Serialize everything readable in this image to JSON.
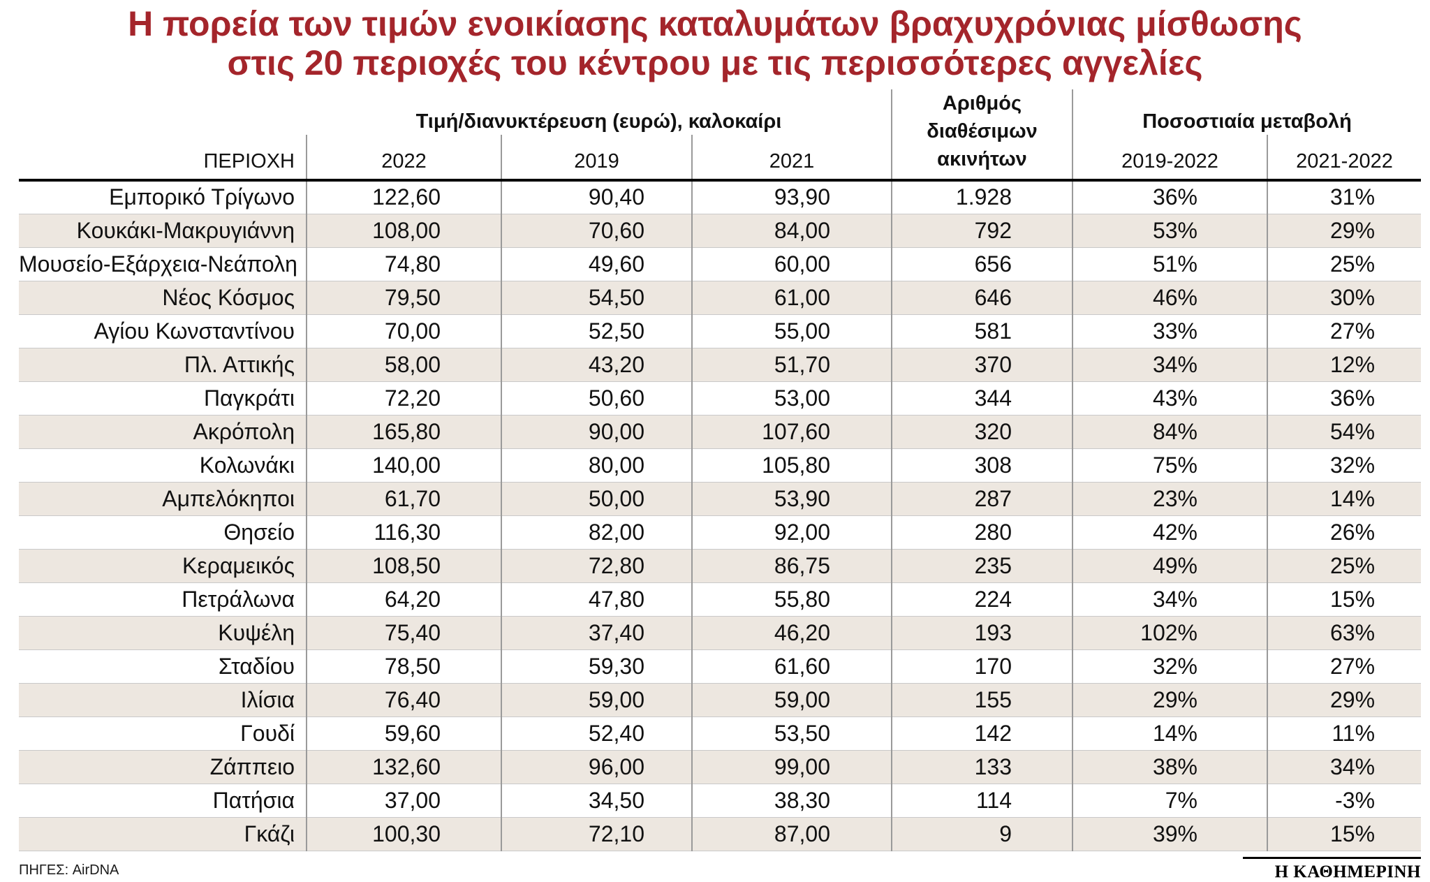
{
  "title": {
    "line1": "Η πορεία των τιμών ενοικίασης καταλυμάτων βραχυχρόνιας μίσθωσης",
    "line2": "στις 20 περιοχές του κέντρου με τις περισσότερες αγγελίες"
  },
  "header": {
    "price_group": "Τιμή/διανυκτέρευση (ευρώ), καλοκαίρι",
    "listings_group_line1": "Αριθμός διαθέσιμων",
    "listings_group_line2": "ακινήτων",
    "change_group": "Ποσοστιαία μεταβολή",
    "region_col": "ΠΕΡΙΟΧΗ",
    "year_cols": [
      "2022",
      "2019",
      "2021"
    ],
    "change_cols": [
      "2019-2022",
      "2021-2022"
    ]
  },
  "footer": {
    "sources": "ΠΗΓΕΣ: AirDNA",
    "brand": "Η ΚΑΘΗΜΕΡΙΝΗ"
  },
  "colors": {
    "title_red": "#A4252B",
    "row_alt_bg": "#EDE7E0"
  },
  "chart_data": {
    "type": "table",
    "title": "Η πορεία των τιμών ενοικίασης καταλυμάτων βραχυχρόνιας μίσθωσης στις 20 περιοχές του κέντρου με τις περισσότερες αγγελίες",
    "column_groups": [
      {
        "label": "Τιμή/διανυκτέρευση (ευρώ), καλοκαίρι",
        "spans": [
          "2022",
          "2019",
          "2021"
        ]
      },
      {
        "label": "Αριθμός διαθέσιμων ακινήτων",
        "spans": [
          "Αριθμός διαθέσιμων ακινήτων"
        ]
      },
      {
        "label": "Ποσοστιαία μεταβολή",
        "spans": [
          "2019-2022",
          "2021-2022"
        ]
      }
    ],
    "columns": [
      "ΠΕΡΙΟΧΗ",
      "2022",
      "2019",
      "2021",
      "Αριθμός διαθέσιμων ακινήτων",
      "2019-2022",
      "2021-2022"
    ],
    "rows": [
      [
        "Εμπορικό Τρίγωνο",
        "122,60",
        "90,40",
        "93,90",
        "1.928",
        "36%",
        "31%"
      ],
      [
        "Κουκάκι-Μακρυγιάννη",
        "108,00",
        "70,60",
        "84,00",
        "792",
        "53%",
        "29%"
      ],
      [
        "Μουσείο-Εξάρχεια-Νεάπολη",
        "74,80",
        "49,60",
        "60,00",
        "656",
        "51%",
        "25%"
      ],
      [
        "Νέος Κόσμος",
        "79,50",
        "54,50",
        "61,00",
        "646",
        "46%",
        "30%"
      ],
      [
        "Αγίου Κωνσταντίνου",
        "70,00",
        "52,50",
        "55,00",
        "581",
        "33%",
        "27%"
      ],
      [
        "Πλ. Αττικής",
        "58,00",
        "43,20",
        "51,70",
        "370",
        "34%",
        "12%"
      ],
      [
        "Παγκράτι",
        "72,20",
        "50,60",
        "53,00",
        "344",
        "43%",
        "36%"
      ],
      [
        "Ακρόπολη",
        "165,80",
        "90,00",
        "107,60",
        "320",
        "84%",
        "54%"
      ],
      [
        "Κολωνάκι",
        "140,00",
        "80,00",
        "105,80",
        "308",
        "75%",
        "32%"
      ],
      [
        "Αμπελόκηποι",
        "61,70",
        "50,00",
        "53,90",
        "287",
        "23%",
        "14%"
      ],
      [
        "Θησείο",
        "116,30",
        "82,00",
        "92,00",
        "280",
        "42%",
        "26%"
      ],
      [
        "Κεραμεικός",
        "108,50",
        "72,80",
        "86,75",
        "235",
        "49%",
        "25%"
      ],
      [
        "Πετράλωνα",
        "64,20",
        "47,80",
        "55,80",
        "224",
        "34%",
        "15%"
      ],
      [
        "Κυψέλη",
        "75,40",
        "37,40",
        "46,20",
        "193",
        "102%",
        "63%"
      ],
      [
        "Σταδίου",
        "78,50",
        "59,30",
        "61,60",
        "170",
        "32%",
        "27%"
      ],
      [
        "Ιλίσια",
        "76,40",
        "59,00",
        "59,00",
        "155",
        "29%",
        "29%"
      ],
      [
        "Γουδί",
        "59,60",
        "52,40",
        "53,50",
        "142",
        "14%",
        "11%"
      ],
      [
        "Ζάππειο",
        "132,60",
        "96,00",
        "99,00",
        "133",
        "38%",
        "34%"
      ],
      [
        "Πατήσια",
        "37,00",
        "34,50",
        "38,30",
        "114",
        "7%",
        "-3%"
      ],
      [
        "Γκάζι",
        "100,30",
        "72,10",
        "87,00",
        "9",
        "39%",
        "15%"
      ]
    ]
  }
}
